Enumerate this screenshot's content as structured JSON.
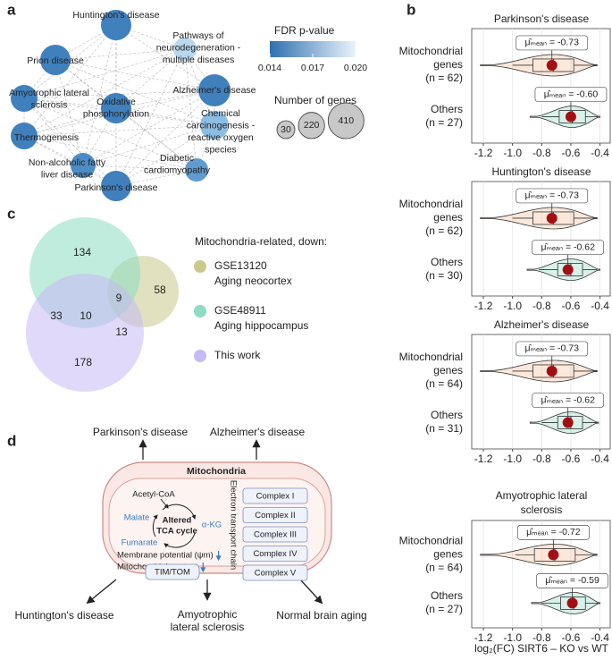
{
  "panel_labels": [
    "a",
    "b",
    "c",
    "d"
  ],
  "network": {
    "nodes": [
      {
        "lines": [
          "Huntington's disease"
        ],
        "color": "#3f80bd"
      },
      {
        "lines": [
          "Pathways of",
          "neurodegeneration -",
          "multiple diseases"
        ],
        "color": "#b9d7ef"
      },
      {
        "lines": [
          "Prion disease"
        ],
        "color": "#3f80bd"
      },
      {
        "lines": [
          "Alzheimer's disease"
        ],
        "color": "#3f80bd"
      },
      {
        "lines": [
          "Amyotrophic lateral",
          "sclerosis"
        ],
        "color": "#3f80bd"
      },
      {
        "lines": [
          "Oxidative",
          "phosphorylation"
        ],
        "color": "#3f80bd"
      },
      {
        "lines": [
          "Chemical",
          "carcinogenesis -",
          "reactive oxygen",
          "species"
        ],
        "color": "#8fbde2"
      },
      {
        "lines": [
          "Thermogenesis"
        ],
        "color": "#3f80bd"
      },
      {
        "lines": [
          "Non-alcoholic fatty",
          "liver disease"
        ],
        "color": "#4d8cc5"
      },
      {
        "lines": [
          "Diabetic",
          "cardiomyopathy"
        ],
        "color": "#5f9bce"
      },
      {
        "lines": [
          "Parkinson's disease"
        ],
        "color": "#3f80bd"
      }
    ],
    "color_legend": {
      "title": "FDR p-value",
      "ticks": [
        "0.014",
        "0.017",
        "0.020"
      ],
      "colors": [
        "#2f70b0",
        "#eaf3fb"
      ]
    },
    "size_legend": {
      "title": "Number of genes",
      "sizes": [
        30,
        220,
        410
      ]
    }
  },
  "chart_data": [
    {
      "type": "violin",
      "title": [
        "Parkinson's disease"
      ],
      "categories": [
        [
          "Mitochondrial",
          "genes",
          "(n = 62)"
        ],
        [
          "Others",
          "(n = 27)"
        ]
      ],
      "colors": [
        "#f2a46e",
        "#62c7a7"
      ],
      "ranges": [
        [
          -1.22,
          -0.42
        ],
        [
          -0.88,
          -0.4
        ]
      ],
      "boxes": [
        {
          "whisker_low": -1.0,
          "q1": -0.86,
          "median": -0.72,
          "q3": -0.58,
          "whisker_high": -0.42
        },
        {
          "whisker_low": -0.8,
          "q1": -0.68,
          "median": -0.59,
          "q3": -0.5,
          "whisker_high": -0.41
        }
      ],
      "means": [
        -0.73,
        -0.6
      ],
      "value_labels": [
        "μ̂ₘₑₐₙ = -0.73",
        "μ̂ₘₑₐₙ = -0.60"
      ],
      "xlim": [
        -1.28,
        -0.33
      ],
      "xticks": [
        -1.2,
        {
          "value": -1,
          "label": "-1.0"
        },
        -0.8,
        -0.6,
        -0.4
      ],
      "grid": true
    },
    {
      "type": "violin",
      "title": [
        "Huntington's disease"
      ],
      "categories": [
        [
          "Mitochondrial",
          "genes",
          "(n = 62)"
        ],
        [
          "Others",
          "(n = 30)"
        ]
      ],
      "colors": [
        "#f2a46e",
        "#62c7a7"
      ],
      "ranges": [
        [
          -1.22,
          -0.42
        ],
        [
          -0.9,
          -0.4
        ]
      ],
      "boxes": [
        {
          "whisker_low": -1.0,
          "q1": -0.86,
          "median": -0.72,
          "q3": -0.58,
          "whisker_high": -0.42
        },
        {
          "whisker_low": -0.82,
          "q1": -0.69,
          "median": -0.6,
          "q3": -0.52,
          "whisker_high": -0.42
        }
      ],
      "means": [
        -0.73,
        -0.62
      ],
      "value_labels": [
        "μ̂ₘₑₐₙ = -0.73",
        "μ̂ₘₑₐₙ = -0.62"
      ],
      "xlim": [
        -1.28,
        -0.33
      ],
      "xticks": [
        -1.2,
        {
          "value": -1,
          "label": "-1.0"
        },
        -0.8,
        -0.6,
        -0.4
      ],
      "grid": true
    },
    {
      "type": "violin",
      "title": [
        "Alzheimer's disease"
      ],
      "categories": [
        [
          "Mitochondrial",
          "genes",
          "(n = 64)"
        ],
        [
          "Others",
          "(n = 31)"
        ]
      ],
      "colors": [
        "#f2a46e",
        "#62c7a7"
      ],
      "ranges": [
        [
          -1.22,
          -0.42
        ],
        [
          -0.88,
          -0.41
        ]
      ],
      "boxes": [
        {
          "whisker_low": -1.0,
          "q1": -0.86,
          "median": -0.72,
          "q3": -0.58,
          "whisker_high": -0.42
        },
        {
          "whisker_low": -0.8,
          "q1": -0.69,
          "median": -0.6,
          "q3": -0.52,
          "whisker_high": -0.42
        }
      ],
      "means": [
        -0.73,
        -0.62
      ],
      "value_labels": [
        "μ̂ₘₑₐₙ = -0.73",
        "μ̂ₘₑₐₙ = -0.62"
      ],
      "xlim": [
        -1.28,
        -0.33
      ],
      "xticks": [
        -1.2,
        {
          "value": -1,
          "label": "-1.0"
        },
        -0.8,
        -0.6,
        -0.4
      ],
      "grid": true
    },
    {
      "type": "violin",
      "title": [
        "Amyotrophic lateral",
        "sclerosis"
      ],
      "categories": [
        [
          "Mitochondrial",
          "genes",
          "(n = 64)"
        ],
        [
          "Others",
          "(n = 27)"
        ]
      ],
      "colors": [
        "#f2a46e",
        "#62c7a7"
      ],
      "ranges": [
        [
          -1.22,
          -0.42
        ],
        [
          -0.87,
          -0.4
        ]
      ],
      "boxes": [
        {
          "whisker_low": -0.98,
          "q1": -0.85,
          "median": -0.71,
          "q3": -0.57,
          "whisker_high": -0.42
        },
        {
          "whisker_low": -0.8,
          "q1": -0.67,
          "median": -0.58,
          "q3": -0.5,
          "whisker_high": -0.41
        }
      ],
      "means": [
        -0.72,
        -0.59
      ],
      "value_labels": [
        "μ̂ₘₑₐₙ = -0.72",
        "μ̂ₘₑₐₙ = -0.59"
      ],
      "xlim": [
        -1.28,
        -0.33
      ],
      "xticks": [
        -1.2,
        {
          "value": -1,
          "label": "-1.0"
        },
        -0.8,
        -0.6,
        -0.4
      ],
      "grid": true
    }
  ],
  "x_axis_label": "log₂(FC) SIRT6 – KO vs WT",
  "venn": {
    "counts": [
      "134",
      "9",
      "58",
      "33",
      "10",
      "13",
      "178"
    ],
    "legend_title": "Mitochondria-related, down:",
    "sets": [
      {
        "name": "GSE13120",
        "description": "Aging neocortex",
        "color": "#c9c98c"
      },
      {
        "name": "GSE48911",
        "description": "Aging hippocampus",
        "color": "#8ddcc3"
      },
      {
        "name": "This work",
        "description": null,
        "color": "#c6b9f5"
      }
    ]
  },
  "diagram": {
    "outputs": [
      [
        "Parkinson's disease"
      ],
      [
        "Alzheimer's disease"
      ],
      [
        "Huntington's disease"
      ],
      [
        "Amyotrophic",
        "lateral sclerosis"
      ],
      [
        "Normal brain aging"
      ]
    ],
    "organelle": "Mitochondria",
    "tca_input": "Acetyl-CoA",
    "metabolites": [
      "Malate",
      "α-KG",
      "Fumarate"
    ],
    "tca_center": [
      "Altered",
      "TCA cycle"
    ],
    "features": [
      "Membrane potential (ψm)",
      "Mitochondrial content"
    ],
    "etc_label": "Electron transport chain",
    "complexes": [
      "Complex I",
      "Complex II",
      "Complex III",
      "Complex IV",
      "Complex V"
    ],
    "transporter": "TIM/TOM"
  }
}
